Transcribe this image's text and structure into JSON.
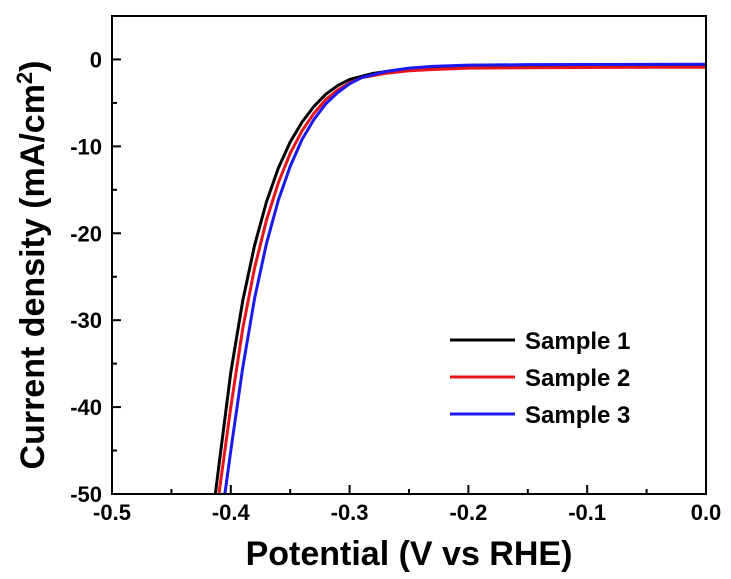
{
  "chart_data": {
    "type": "line",
    "title": "",
    "xlabel": "Potential (V vs RHE)",
    "ylabel_main": "Current density (mA/cm",
    "ylabel_sup": "2",
    "ylabel_close": ")",
    "xlim": [
      -0.5,
      0.0
    ],
    "ylim": [
      -50,
      5
    ],
    "x_ticks": [
      -0.5,
      -0.4,
      -0.3,
      -0.2,
      -0.1,
      0.0
    ],
    "x_tick_labels": [
      "-0.5",
      "-0.4",
      "-0.3",
      "-0.2",
      "-0.1",
      "0.0"
    ],
    "y_ticks": [
      0,
      -10,
      -20,
      -30,
      -40,
      -50
    ],
    "y_tick_labels": [
      "0",
      "-10",
      "-20",
      "-30",
      "-40",
      "-50"
    ],
    "grid": false,
    "legend_position": "bottom-right",
    "series": [
      {
        "name": "Sample 1",
        "color": "#000000",
        "x": [
          -0.413,
          -0.41,
          -0.4,
          -0.39,
          -0.38,
          -0.37,
          -0.36,
          -0.35,
          -0.34,
          -0.33,
          -0.32,
          -0.31,
          -0.3,
          -0.28,
          -0.26,
          -0.24,
          -0.22,
          -0.2,
          -0.15,
          -0.1,
          -0.05,
          0.0
        ],
        "y": [
          -50,
          -46.7,
          -36.0,
          -27.8,
          -21.4,
          -16.4,
          -12.5,
          -9.5,
          -7.2,
          -5.4,
          -4.0,
          -3.0,
          -2.3,
          -1.6,
          -1.2,
          -1.0,
          -0.9,
          -0.8,
          -0.75,
          -0.7,
          -0.65,
          -0.6
        ]
      },
      {
        "name": "Sample 2",
        "color": "#e8141b",
        "x": [
          -0.41,
          -0.4,
          -0.39,
          -0.38,
          -0.37,
          -0.36,
          -0.35,
          -0.34,
          -0.33,
          -0.32,
          -0.31,
          -0.3,
          -0.29,
          -0.27,
          -0.25,
          -0.23,
          -0.21,
          -0.2,
          -0.15,
          -0.1,
          -0.05,
          0.0
        ],
        "y": [
          -50,
          -40.0,
          -31.0,
          -24.0,
          -18.5,
          -14.2,
          -10.8,
          -8.2,
          -6.2,
          -4.6,
          -3.5,
          -2.7,
          -2.1,
          -1.6,
          -1.3,
          -1.15,
          -1.05,
          -1.0,
          -0.95,
          -0.92,
          -0.9,
          -0.9
        ]
      },
      {
        "name": "Sample 3",
        "color": "#1a1aee",
        "x": [
          -0.405,
          -0.4,
          -0.39,
          -0.38,
          -0.37,
          -0.36,
          -0.35,
          -0.34,
          -0.33,
          -0.32,
          -0.31,
          -0.3,
          -0.29,
          -0.27,
          -0.25,
          -0.23,
          -0.21,
          -0.2,
          -0.15,
          -0.1,
          -0.05,
          0.0
        ],
        "y": [
          -50,
          -45.0,
          -35.5,
          -27.5,
          -21.2,
          -16.2,
          -12.3,
          -9.2,
          -6.9,
          -5.1,
          -3.8,
          -2.8,
          -2.1,
          -1.4,
          -1.0,
          -0.8,
          -0.7,
          -0.65,
          -0.6,
          -0.58,
          -0.57,
          -0.55
        ]
      }
    ]
  }
}
